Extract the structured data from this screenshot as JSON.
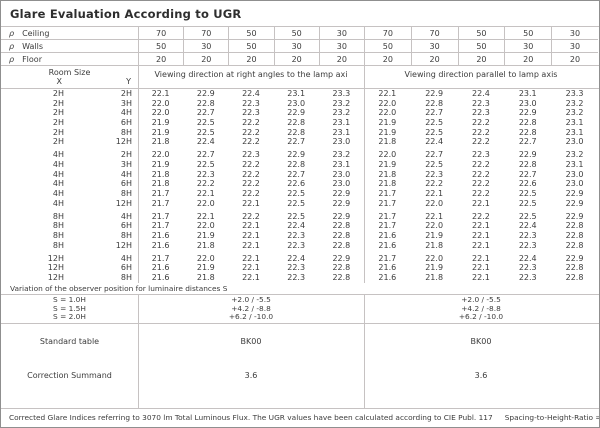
{
  "title": "Glare Evaluation According to UGR",
  "reflectances": {
    "rows": [
      {
        "symbol": "ρ",
        "label": "Ceiling",
        "values": [
          "70",
          "70",
          "50",
          "50",
          "30",
          "70",
          "70",
          "50",
          "50",
          "30"
        ]
      },
      {
        "symbol": "ρ",
        "label": "Walls",
        "values": [
          "50",
          "30",
          "50",
          "30",
          "30",
          "50",
          "30",
          "50",
          "30",
          "30"
        ]
      },
      {
        "symbol": "ρ",
        "label": "Floor",
        "values": [
          "20",
          "20",
          "20",
          "20",
          "20",
          "20",
          "20",
          "20",
          "20",
          "20"
        ]
      }
    ]
  },
  "header": {
    "room_size_label": "Room Size",
    "x_label": "X",
    "y_label": "Y",
    "left_heading": "Viewing direction at right angles to the lamp axi",
    "right_heading": "Viewing direction parallel to lamp axis"
  },
  "ugr_groups": [
    {
      "rows": [
        {
          "x": "2H",
          "y": "2H",
          "left": [
            "22.1",
            "22.9",
            "22.4",
            "23.1",
            "23.3"
          ],
          "right": [
            "22.1",
            "22.9",
            "22.4",
            "23.1",
            "23.3"
          ]
        },
        {
          "x": "2H",
          "y": "3H",
          "left": [
            "22.0",
            "22.8",
            "22.3",
            "23.0",
            "23.2"
          ],
          "right": [
            "22.0",
            "22.8",
            "22.3",
            "23.0",
            "23.2"
          ]
        },
        {
          "x": "2H",
          "y": "4H",
          "left": [
            "22.0",
            "22.7",
            "22.3",
            "22.9",
            "23.2"
          ],
          "right": [
            "22.0",
            "22.7",
            "22.3",
            "22.9",
            "23.2"
          ]
        },
        {
          "x": "2H",
          "y": "6H",
          "left": [
            "21.9",
            "22.5",
            "22.2",
            "22.8",
            "23.1"
          ],
          "right": [
            "21.9",
            "22.5",
            "22.2",
            "22.8",
            "23.1"
          ]
        },
        {
          "x": "2H",
          "y": "8H",
          "left": [
            "21.9",
            "22.5",
            "22.2",
            "22.8",
            "23.1"
          ],
          "right": [
            "21.9",
            "22.5",
            "22.2",
            "22.8",
            "23.1"
          ]
        },
        {
          "x": "2H",
          "y": "12H",
          "left": [
            "21.8",
            "22.4",
            "22.2",
            "22.7",
            "23.0"
          ],
          "right": [
            "21.8",
            "22.4",
            "22.2",
            "22.7",
            "23.0"
          ]
        }
      ]
    },
    {
      "rows": [
        {
          "x": "4H",
          "y": "2H",
          "left": [
            "22.0",
            "22.7",
            "22.3",
            "22.9",
            "23.2"
          ],
          "right": [
            "22.0",
            "22.7",
            "22.3",
            "22.9",
            "23.2"
          ]
        },
        {
          "x": "4H",
          "y": "3H",
          "left": [
            "21.9",
            "22.5",
            "22.2",
            "22.8",
            "23.1"
          ],
          "right": [
            "21.9",
            "22.5",
            "22.2",
            "22.8",
            "23.1"
          ]
        },
        {
          "x": "4H",
          "y": "4H",
          "left": [
            "21.8",
            "22.3",
            "22.2",
            "22.7",
            "23.0"
          ],
          "right": [
            "21.8",
            "22.3",
            "22.2",
            "22.7",
            "23.0"
          ]
        },
        {
          "x": "4H",
          "y": "6H",
          "left": [
            "21.8",
            "22.2",
            "22.2",
            "22.6",
            "23.0"
          ],
          "right": [
            "21.8",
            "22.2",
            "22.2",
            "22.6",
            "23.0"
          ]
        },
        {
          "x": "4H",
          "y": "8H",
          "left": [
            "21.7",
            "22.1",
            "22.2",
            "22.5",
            "22.9"
          ],
          "right": [
            "21.7",
            "22.1",
            "22.2",
            "22.5",
            "22.9"
          ]
        },
        {
          "x": "4H",
          "y": "12H",
          "left": [
            "21.7",
            "22.0",
            "22.1",
            "22.5",
            "22.9"
          ],
          "right": [
            "21.7",
            "22.0",
            "22.1",
            "22.5",
            "22.9"
          ]
        }
      ]
    },
    {
      "rows": [
        {
          "x": "8H",
          "y": "4H",
          "left": [
            "21.7",
            "22.1",
            "22.2",
            "22.5",
            "22.9"
          ],
          "right": [
            "21.7",
            "22.1",
            "22.2",
            "22.5",
            "22.9"
          ]
        },
        {
          "x": "8H",
          "y": "6H",
          "left": [
            "21.7",
            "22.0",
            "22.1",
            "22.4",
            "22.8"
          ],
          "right": [
            "21.7",
            "22.0",
            "22.1",
            "22.4",
            "22.8"
          ]
        },
        {
          "x": "8H",
          "y": "8H",
          "left": [
            "21.6",
            "21.9",
            "22.1",
            "22.3",
            "22.8"
          ],
          "right": [
            "21.6",
            "21.9",
            "22.1",
            "22.3",
            "22.8"
          ]
        },
        {
          "x": "8H",
          "y": "12H",
          "left": [
            "21.6",
            "21.8",
            "22.1",
            "22.3",
            "22.8"
          ],
          "right": [
            "21.6",
            "21.8",
            "22.1",
            "22.3",
            "22.8"
          ]
        }
      ]
    },
    {
      "rows": [
        {
          "x": "12H",
          "y": "4H",
          "left": [
            "21.7",
            "22.0",
            "22.1",
            "22.4",
            "22.9"
          ],
          "right": [
            "21.7",
            "22.0",
            "22.1",
            "22.4",
            "22.9"
          ]
        },
        {
          "x": "12H",
          "y": "6H",
          "left": [
            "21.6",
            "21.9",
            "22.1",
            "22.3",
            "22.8"
          ],
          "right": [
            "21.6",
            "21.9",
            "22.1",
            "22.3",
            "22.8"
          ]
        },
        {
          "x": "12H",
          "y": "8H",
          "left": [
            "21.6",
            "21.8",
            "22.1",
            "22.3",
            "22.8"
          ],
          "right": [
            "21.6",
            "21.8",
            "22.1",
            "22.3",
            "22.8"
          ]
        }
      ]
    }
  ],
  "variation_note": "Variation of the observer position for luminaire distances S",
  "spacing_rows": [
    {
      "label": "S = 1.0H",
      "left": "+2.0 / -5.5",
      "right": "+2.0 / -5.5"
    },
    {
      "label": "S = 1.5H",
      "left": "+4.2 / -8.8",
      "right": "+4.2 / -8.8"
    },
    {
      "label": "S = 2.0H",
      "left": "+6.2 / -10.0",
      "right": "+6.2 / -10.0"
    }
  ],
  "summary_rows": [
    {
      "label": "Standard table",
      "left": "BK00",
      "right": "BK00"
    },
    {
      "label": "Correction Summand",
      "left": "3.6",
      "right": "3.6"
    }
  ],
  "footer": {
    "text": "Corrected Glare Indices referring to 3070 lm Total Luminous Flux. The UGR values have been calculated according to CIE Publ. 117",
    "ratio": "Spacing-to-Height-Ratio = 0.25."
  },
  "colors": {
    "text": "#3c3c3c",
    "grid_line": "#c6c2c2",
    "outer_border": "#8f8f8f"
  }
}
